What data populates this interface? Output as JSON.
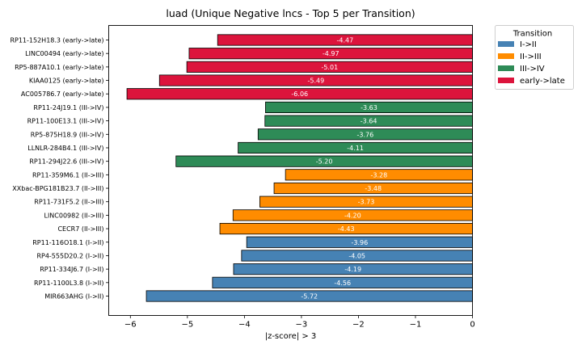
{
  "chart_data": {
    "type": "bar",
    "orientation": "horizontal",
    "title": "luad (Unique Negative lncs - Top 5 per Transition)",
    "xlabel": "|z-score| > 3",
    "ylabel": "",
    "xlim": [
      -6.38,
      0
    ],
    "xticks": [
      {
        "value": -6,
        "label": "−6"
      },
      {
        "value": -5,
        "label": "−5"
      },
      {
        "value": -4,
        "label": "−4"
      },
      {
        "value": -3,
        "label": "−3"
      },
      {
        "value": -2,
        "label": "−2"
      },
      {
        "value": -1,
        "label": "−1"
      },
      {
        "value": 0,
        "label": "0"
      }
    ],
    "grid": false,
    "legend": {
      "title": "Transition",
      "placement": "outside-top-right",
      "entries": [
        {
          "label": "I->II",
          "color": "#4682b4"
        },
        {
          "label": "II->III",
          "color": "#ff8c00"
        },
        {
          "label": "III->IV",
          "color": "#2e8b57"
        },
        {
          "label": "early->late",
          "color": "#dc143c"
        }
      ]
    },
    "bars": [
      {
        "category": "RP11-152H18.3 (early->late)",
        "value": -4.47,
        "label": "-4.47",
        "group": 3
      },
      {
        "category": "LINC00494 (early->late)",
        "value": -4.97,
        "label": "-4.97",
        "group": 3
      },
      {
        "category": "RP5-887A10.1 (early->late)",
        "value": -5.01,
        "label": "-5.01",
        "group": 3
      },
      {
        "category": "KIAA0125 (early->late)",
        "value": -5.49,
        "label": "-5.49",
        "group": 3
      },
      {
        "category": "AC005786.7 (early->late)",
        "value": -6.06,
        "label": "-6.06",
        "group": 3
      },
      {
        "category": "RP11-24J19.1 (III->IV)",
        "value": -3.63,
        "label": "-3.63",
        "group": 2
      },
      {
        "category": "RP11-100E13.1 (III->IV)",
        "value": -3.64,
        "label": "-3.64",
        "group": 2
      },
      {
        "category": "RP5-875H18.9 (III->IV)",
        "value": -3.76,
        "label": "-3.76",
        "group": 2
      },
      {
        "category": "LLNLR-284B4.1 (III->IV)",
        "value": -4.11,
        "label": "-4.11",
        "group": 2
      },
      {
        "category": "RP11-294J22.6 (III->IV)",
        "value": -5.2,
        "label": "-5.20",
        "group": 2
      },
      {
        "category": "RP11-359M6.1 (II->III)",
        "value": -3.28,
        "label": "-3.28",
        "group": 1
      },
      {
        "category": "XXbac-BPG181B23.7 (II->III)",
        "value": -3.48,
        "label": "-3.48",
        "group": 1
      },
      {
        "category": "RP11-731F5.2 (II->III)",
        "value": -3.73,
        "label": "-3.73",
        "group": 1
      },
      {
        "category": "LINC00982 (II->III)",
        "value": -4.2,
        "label": "-4.20",
        "group": 1
      },
      {
        "category": "CECR7 (II->III)",
        "value": -4.43,
        "label": "-4.43",
        "group": 1
      },
      {
        "category": "RP11-116O18.1 (I->II)",
        "value": -3.96,
        "label": "-3.96",
        "group": 0
      },
      {
        "category": "RP4-555D20.2 (I->II)",
        "value": -4.05,
        "label": "-4.05",
        "group": 0
      },
      {
        "category": "RP11-334J6.7 (I->II)",
        "value": -4.19,
        "label": "-4.19",
        "group": 0
      },
      {
        "category": "RP11-1100L3.8 (I->II)",
        "value": -4.56,
        "label": "-4.56",
        "group": 0
      },
      {
        "category": "MIR663AHG (I->II)",
        "value": -5.72,
        "label": "-5.72",
        "group": 0
      }
    ]
  }
}
